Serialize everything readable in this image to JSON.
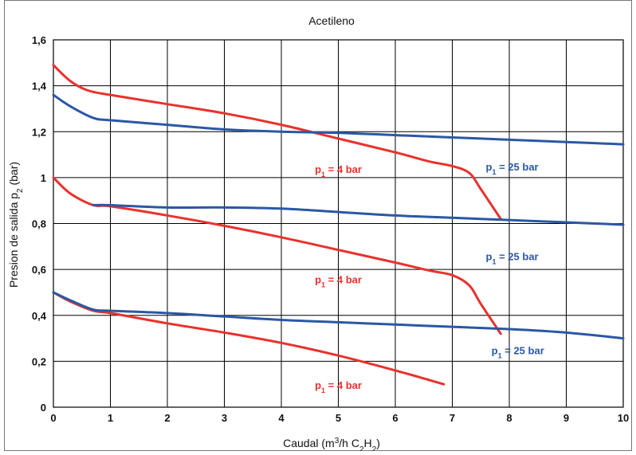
{
  "chart_data": {
    "type": "line",
    "title": "Acetileno",
    "xlabel": {
      "pre": "Caudal  (m",
      "sup": "3",
      "mid1": "/h C",
      "sub1": "2",
      "mid2": "H",
      "sub2": "2",
      "post": ")"
    },
    "ylabel": {
      "pre": "Presion de salida  p",
      "sub": "2",
      "post": "  (bar)"
    },
    "xlim": [
      0,
      10
    ],
    "ylim": [
      0,
      1.6
    ],
    "x_ticks": [
      "0",
      "1",
      "2",
      "3",
      "4",
      "5",
      "6",
      "7",
      "8",
      "9",
      "10"
    ],
    "y_ticks": [
      "0",
      "0,2",
      "0,4",
      "0,6",
      "0,8",
      "1",
      "1,2",
      "1,4",
      "1,6"
    ],
    "x_tick_values": [
      0,
      1,
      2,
      3,
      4,
      5,
      6,
      7,
      8,
      9,
      10
    ],
    "y_tick_values": [
      0,
      0.2,
      0.4,
      0.6,
      0.8,
      1.0,
      1.2,
      1.4,
      1.6
    ],
    "grid": true,
    "colors": {
      "red": "#e8322d",
      "blue": "#2a58a4"
    },
    "series": [
      {
        "color": "#e8322d",
        "x": [
          0,
          0.3,
          0.6,
          1.0,
          2.0,
          3.0,
          4.0,
          5.0,
          6.0,
          6.6,
          7.0,
          7.3,
          7.5,
          7.85
        ],
        "y": [
          1.49,
          1.42,
          1.38,
          1.36,
          1.32,
          1.28,
          1.23,
          1.17,
          1.11,
          1.07,
          1.05,
          1.02,
          0.95,
          0.82
        ]
      },
      {
        "color": "#2a58a4",
        "x": [
          0,
          0.3,
          0.7,
          1.0,
          2.0,
          3.0,
          4.0,
          5.0,
          6.0,
          7.0,
          8.0,
          9.0,
          10.0
        ],
        "y": [
          1.36,
          1.31,
          1.26,
          1.25,
          1.23,
          1.21,
          1.2,
          1.195,
          1.185,
          1.175,
          1.165,
          1.155,
          1.145
        ]
      },
      {
        "color": "#e8322d",
        "x": [
          0,
          0.3,
          0.7,
          1.0,
          2.0,
          3.0,
          4.0,
          5.0,
          6.0,
          6.6,
          7.0,
          7.3,
          7.5,
          7.85
        ],
        "y": [
          1.0,
          0.93,
          0.88,
          0.875,
          0.835,
          0.79,
          0.74,
          0.685,
          0.63,
          0.595,
          0.575,
          0.53,
          0.45,
          0.32
        ]
      },
      {
        "color": "#2a58a4",
        "x": [
          0.7,
          1.0,
          2.0,
          3.0,
          4.0,
          5.0,
          6.0,
          7.0,
          8.0,
          9.0,
          10.0
        ],
        "y": [
          0.88,
          0.88,
          0.87,
          0.87,
          0.865,
          0.85,
          0.835,
          0.825,
          0.815,
          0.805,
          0.795
        ]
      },
      {
        "color": "#e8322d",
        "x": [
          0,
          0.3,
          0.7,
          1.0,
          2.0,
          3.0,
          4.0,
          5.0,
          6.0,
          6.85
        ],
        "y": [
          0.5,
          0.46,
          0.42,
          0.41,
          0.365,
          0.325,
          0.28,
          0.225,
          0.16,
          0.1
        ]
      },
      {
        "color": "#2a58a4",
        "x": [
          0,
          0.3,
          0.7,
          1.0,
          2.0,
          3.0,
          4.0,
          5.0,
          6.0,
          7.0,
          8.0,
          9.0,
          10.0
        ],
        "y": [
          0.5,
          0.465,
          0.425,
          0.42,
          0.41,
          0.395,
          0.38,
          0.37,
          0.36,
          0.35,
          0.34,
          0.325,
          0.3
        ]
      }
    ],
    "annotations": [
      {
        "pre": "p",
        "sub": "1",
        "post": " = 4 bar",
        "color": "#e8322d",
        "x": 5.0,
        "y": 1.02
      },
      {
        "pre": "p",
        "sub": "1",
        "post": " = 25 bar",
        "color": "#2a58a4",
        "x": 8.05,
        "y": 1.03
      },
      {
        "pre": "p",
        "sub": "1",
        "post": " = 25 bar",
        "color": "#2a58a4",
        "x": 8.05,
        "y": 0.64
      },
      {
        "pre": "p",
        "sub": "1",
        "post": " = 4 bar",
        "color": "#e8322d",
        "x": 5.0,
        "y": 0.54
      },
      {
        "pre": "p",
        "sub": "1",
        "post": " = 25 bar",
        "color": "#2a58a4",
        "x": 8.15,
        "y": 0.23
      },
      {
        "pre": "p",
        "sub": "1",
        "post": " = 4 bar",
        "color": "#e8322d",
        "x": 5.0,
        "y": 0.08
      }
    ]
  }
}
